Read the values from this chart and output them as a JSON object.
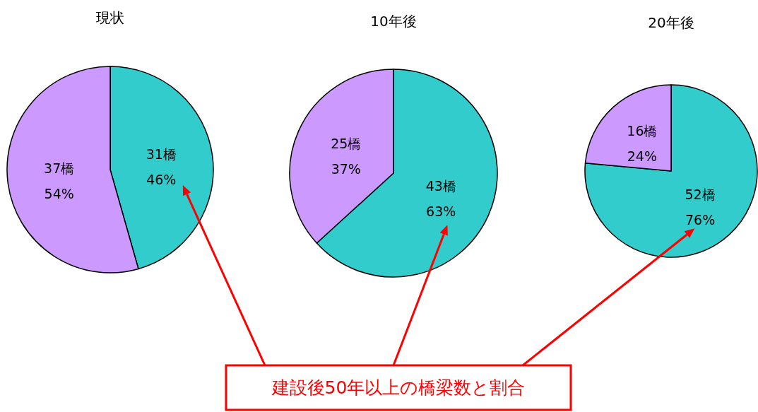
{
  "chart_data": [
    {
      "type": "pie",
      "title": "現状",
      "categories": [
        null,
        null
      ],
      "values": [
        31,
        37
      ],
      "colors": [
        "#33cccc",
        "#cc99ff"
      ],
      "value_labels": [
        "31橋\n46%",
        "37橋\n54%"
      ]
    },
    {
      "type": "pie",
      "title": "10年後",
      "categories": [
        null,
        null
      ],
      "values": [
        43,
        25
      ],
      "colors": [
        "#33cccc",
        "#cc99ff"
      ],
      "value_labels": [
        "43橋\n63%",
        "25橋\n37%"
      ],
      "annotations": [
        "建設後50年以上の橋梁数と割合"
      ]
    },
    {
      "type": "pie",
      "title": "20年後",
      "categories": [
        null,
        null
      ],
      "values": [
        52,
        16
      ],
      "colors": [
        "#33cccc",
        "#cc99ff"
      ],
      "value_labels": [
        "52橋\n76%",
        "16橋\n24%"
      ]
    }
  ]
}
